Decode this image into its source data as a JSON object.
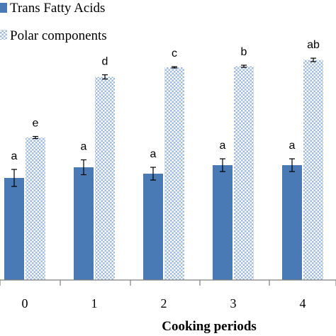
{
  "chart_data": {
    "type": "bar",
    "title": "",
    "xlabel": "Cooking periods",
    "ylabel": "",
    "categories": [
      "0",
      "1",
      "2",
      "3",
      "4"
    ],
    "ylim": [
      0,
      100
    ],
    "grid": false,
    "legend_position": "top-left",
    "series": [
      {
        "name": "Trans Fatty Acids",
        "color": "#4a7ab5",
        "values": [
          48,
          53,
          50,
          54,
          54
        ],
        "errors": [
          4,
          3.5,
          3,
          3,
          3
        ],
        "labels": [
          "a",
          "a",
          "a",
          "a",
          "a"
        ]
      },
      {
        "name": "Polar components",
        "color": "#b9cde6",
        "pattern": "checkered",
        "values": [
          67,
          95.5,
          100,
          100.5,
          103.5
        ],
        "errors": [
          0.5,
          1,
          0.3,
          0.5,
          0.8
        ],
        "labels": [
          "e",
          "d",
          "c",
          "b",
          "ab"
        ]
      }
    ]
  }
}
